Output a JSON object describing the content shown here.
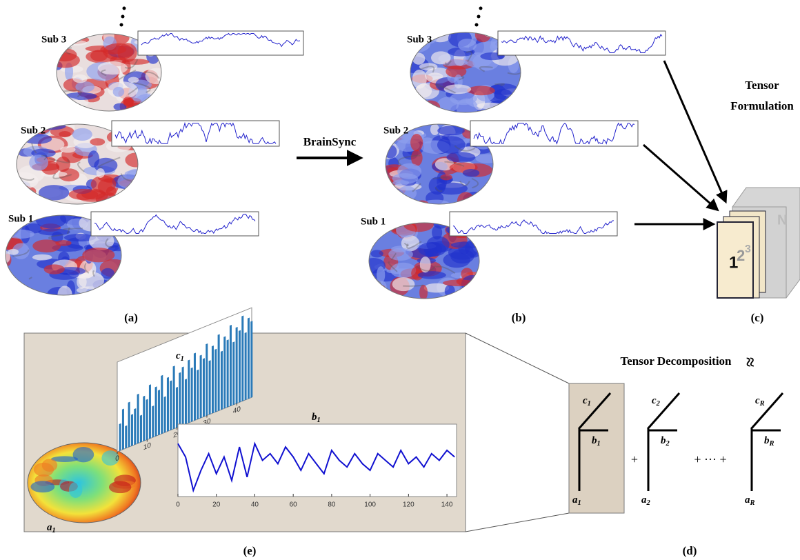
{
  "panels": {
    "a": {
      "label": "(a)",
      "subjects": [
        "Sub 3",
        "Sub 2",
        "Sub 1"
      ]
    },
    "b": {
      "label": "(b)",
      "subjects": [
        "Sub 3",
        "Sub 2",
        "Sub 1"
      ]
    },
    "arrow_label": "BrainSync",
    "c": {
      "label": "(c)",
      "title": [
        "Tensor",
        "Formulation"
      ],
      "slices": [
        "1",
        "2",
        "3",
        "N"
      ]
    },
    "d": {
      "label": "(d)",
      "title": "Tensor Decomposition",
      "approx": "≈",
      "plus": "+",
      "ellipsis": "+ ··· +",
      "components": [
        {
          "c": {
            "base": "c",
            "sub": "1"
          },
          "b": {
            "base": "b",
            "sub": "1"
          },
          "a": {
            "base": "a",
            "sub": "1"
          }
        },
        {
          "c": {
            "base": "c",
            "sub": "2"
          },
          "b": {
            "base": "b",
            "sub": "2"
          },
          "a": {
            "base": "a",
            "sub": "2"
          }
        },
        {
          "c": {
            "base": "c",
            "sub": "R"
          },
          "b": {
            "base": "b",
            "sub": "R"
          },
          "a": {
            "base": "a",
            "sub": "R"
          }
        }
      ]
    },
    "e": {
      "label": "(e)",
      "a1_label": {
        "base": "a",
        "sub": "1"
      },
      "c1_plot": {
        "title": {
          "base": "c",
          "sub": "1"
        },
        "xlim": [
          0,
          45
        ],
        "xticks": [
          0,
          10,
          20,
          30,
          40
        ],
        "ylim": [
          0,
          1
        ],
        "values": [
          0.3,
          0.45,
          0.25,
          0.5,
          0.35,
          0.4,
          0.55,
          0.3,
          0.5,
          0.45,
          0.6,
          0.35,
          0.55,
          0.5,
          0.65,
          0.4,
          0.6,
          0.55,
          0.7,
          0.45,
          0.6,
          0.65,
          0.5,
          0.7,
          0.6,
          0.75,
          0.55,
          0.7,
          0.65,
          0.8,
          0.6,
          0.75,
          0.7,
          0.85,
          0.65,
          0.8,
          0.75,
          0.9,
          0.7,
          0.85,
          0.8,
          0.95,
          0.75,
          0.9,
          0.85
        ]
      },
      "b1_plot": {
        "title": {
          "base": "b",
          "sub": "1"
        },
        "xlim": [
          0,
          145
        ],
        "xticks": [
          0,
          20,
          40,
          60,
          80,
          100,
          120,
          140
        ],
        "ylim": [
          0,
          1
        ],
        "x": [
          0,
          4,
          8,
          12,
          16,
          20,
          24,
          28,
          32,
          36,
          40,
          44,
          48,
          52,
          56,
          60,
          64,
          68,
          72,
          76,
          80,
          84,
          88,
          92,
          96,
          100,
          104,
          108,
          112,
          116,
          120,
          124,
          128,
          132,
          136,
          140,
          144
        ],
        "values": [
          0.75,
          0.55,
          0.05,
          0.35,
          0.6,
          0.3,
          0.55,
          0.2,
          0.7,
          0.25,
          0.75,
          0.5,
          0.6,
          0.45,
          0.7,
          0.55,
          0.35,
          0.6,
          0.45,
          0.3,
          0.65,
          0.5,
          0.4,
          0.6,
          0.45,
          0.35,
          0.6,
          0.5,
          0.4,
          0.65,
          0.45,
          0.55,
          0.4,
          0.6,
          0.5,
          0.65,
          0.55
        ]
      }
    }
  }
}
